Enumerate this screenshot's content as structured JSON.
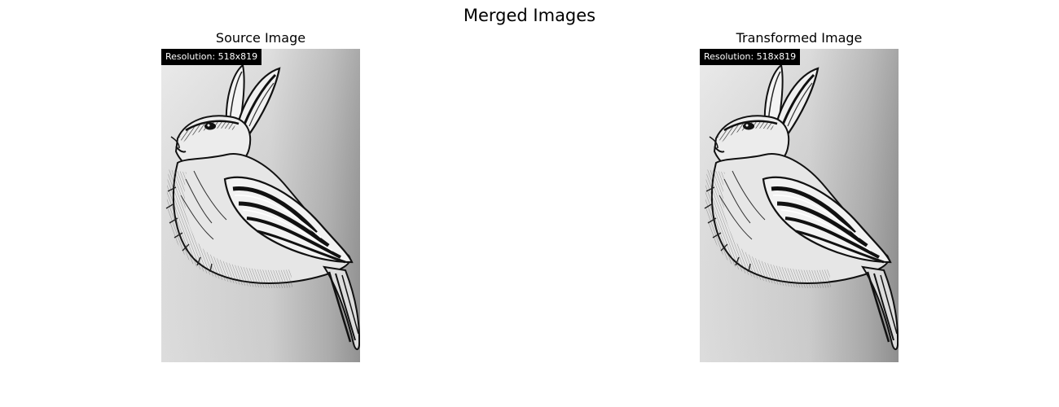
{
  "figure": {
    "title": "Merged Images"
  },
  "panels": [
    {
      "title": "Source Image",
      "resolution_label": "Resolution: 518x819",
      "image_subject": "pencil-sketch-hare-bird"
    },
    {
      "title": "Transformed Image",
      "resolution_label": "Resolution: 518x819",
      "image_subject": "pencil-sketch-hare-bird"
    }
  ],
  "colors": {
    "background": "#ffffff",
    "badge_background": "#000000",
    "badge_text": "#ffffff",
    "ink": "#111111"
  }
}
